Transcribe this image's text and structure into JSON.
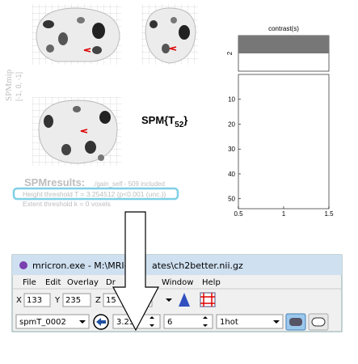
{
  "spm": {
    "mip_label": "SPMmip",
    "mip_coords": "[-1, 0, -1]",
    "stat": "SPM{T",
    "stat_df": "52",
    "stat_close": "}",
    "results_title": "SPMresults:",
    "results_file": "./gain_self - 509 included",
    "height_threshold": "Height threshold T = 3.254512  {p<0.001 (unc.)}",
    "extent_threshold": "Extent threshold k = 0 voxels"
  },
  "contrast_plot": {
    "title": "contrast(s)",
    "contrast_label": "2",
    "ylim": [
      0,
      54
    ],
    "yticks": [
      10,
      20,
      30,
      40,
      50
    ],
    "xlim": [
      0.5,
      1.5
    ],
    "xticks": [
      0.5,
      1,
      1.5
    ]
  },
  "mricron": {
    "title_left": "mricron.exe - M:\\MRIc",
    "title_right": "ates\\ch2better.nii.gz",
    "menu": [
      "File",
      "Edit",
      "Overlay",
      "Dr",
      "Window",
      "Help"
    ],
    "x_label": "X",
    "x": "133",
    "y_label": "Y",
    "y": "235",
    "z_label": "Z",
    "z": "15",
    "overlay": "spmT_0002",
    "min": "3.25",
    "max": "6",
    "colormap": "1hot"
  }
}
